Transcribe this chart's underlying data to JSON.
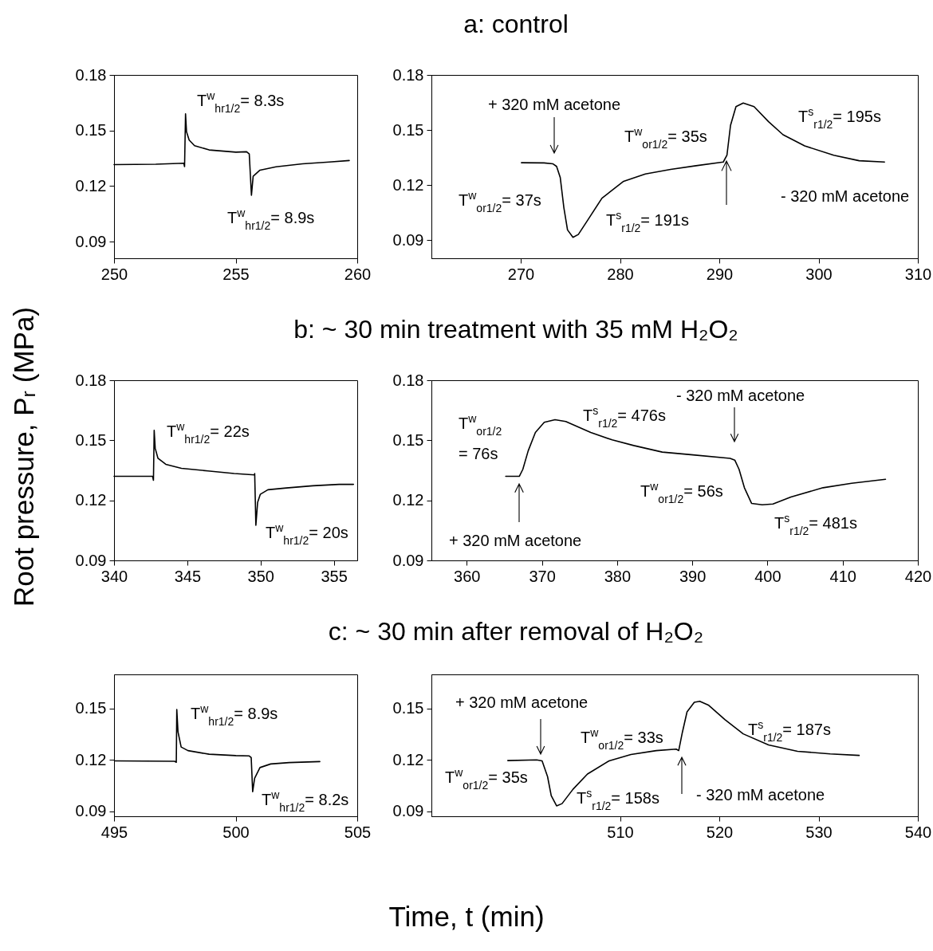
{
  "chart_data": [
    {
      "type": "line",
      "xlim": [
        250,
        260
      ],
      "xticks": [
        250,
        255,
        260
      ],
      "ylim": [
        0.081,
        0.18
      ],
      "yticks": [
        0.09,
        0.12,
        0.15,
        0.18
      ],
      "series": [
        {
          "color": "#000000",
          "x": [
            250,
            251.72,
            252.87,
            252.9,
            252.94,
            252.98,
            253.09,
            253.31,
            253.91,
            255.01,
            255.45,
            255.56,
            255.65,
            255.72,
            256.0,
            256.66,
            257.75,
            258.85,
            259.67
          ],
          "values": [
            0.1316,
            0.1318,
            0.1323,
            0.1305,
            0.159,
            0.1493,
            0.1448,
            0.1418,
            0.1395,
            0.1383,
            0.1385,
            0.1373,
            0.115,
            0.1253,
            0.1286,
            0.1304,
            0.132,
            0.133,
            0.1338
          ]
        }
      ],
      "annotations": [
        "T$^{w}$$_{hr1/2}$= 8.3s",
        "T$^{w}$$_{hr1/2}$= 8.9s"
      ]
    },
    {
      "type": "line",
      "title": "a: control",
      "xlim": [
        261,
        310
      ],
      "xticks": [
        270,
        280,
        290,
        300,
        310
      ],
      "ylim": [
        0.08,
        0.18
      ],
      "yticks": [
        0.09,
        0.12,
        0.15,
        0.18
      ],
      "series": [
        {
          "color": "#000000",
          "x": [
            270.07,
            272.34,
            273.25,
            273.61,
            273.98,
            274.34,
            274.71,
            275.26,
            275.8,
            276.72,
            278.18,
            280.36,
            282.55,
            285.1,
            287.66,
            290.4,
            290.77,
            291.13,
            291.68,
            292.41,
            293.5,
            294.96,
            296.42,
            298.6,
            301.53,
            304.09,
            306.64
          ],
          "values": [
            0.1321,
            0.132,
            0.1315,
            0.1301,
            0.124,
            0.1077,
            0.0955,
            0.0914,
            0.093,
            0.1006,
            0.1128,
            0.122,
            0.126,
            0.1285,
            0.1305,
            0.1325,
            0.1362,
            0.1525,
            0.1627,
            0.1647,
            0.1627,
            0.1545,
            0.1474,
            0.1413,
            0.1362,
            0.1332,
            0.1325
          ]
        }
      ],
      "annotations": [
        "+ 320 mM acetone",
        "T$^{w}$$_{or1/2}$= 37s",
        "T$^{s}$$_{r1/2}$= 191s",
        "T$^{w}$$_{or1/2}$= 35s",
        "- 320 mM acetone",
        "T$^{s}$$_{r1/2}$= 195s"
      ]
    },
    {
      "type": "line",
      "xlim": [
        340,
        356.6
      ],
      "xticks": [
        340,
        345,
        350,
        355
      ],
      "ylim": [
        0.09,
        0.18
      ],
      "yticks": [
        0.09,
        0.12,
        0.15,
        0.18
      ],
      "series": [
        {
          "color": "#000000",
          "x": [
            340,
            342.63,
            342.69,
            342.74,
            342.81,
            343.0,
            343.53,
            344.6,
            346.4,
            348.2,
            349.59,
            349.6,
            349.68,
            349.8,
            349.98,
            350.5,
            351.77,
            353.57,
            355.36,
            356.34
          ],
          "values": [
            0.132,
            0.132,
            0.13,
            0.155,
            0.146,
            0.141,
            0.138,
            0.136,
            0.1347,
            0.1334,
            0.1327,
            0.1334,
            0.1075,
            0.119,
            0.123,
            0.1253,
            0.1262,
            0.1273,
            0.128,
            0.128
          ]
        }
      ],
      "annotations": [
        "T$^{w}$$_{hr1/2}$= 22s",
        "T$^{w}$$_{hr1/2}$= 20s"
      ],
      "ylabel": "Root pressure, Pᵣ (MPa)"
    },
    {
      "type": "line",
      "title": "b: ~ 30 min treatment with 35 mM H₂O₂",
      "xlim": [
        355.3,
        420
      ],
      "xticks": [
        360,
        370,
        380,
        390,
        400,
        410,
        420
      ],
      "ylim": [
        0.09,
        0.18
      ],
      "yticks": [
        0.09,
        0.12,
        0.15,
        0.18
      ],
      "series": [
        {
          "color": "#000000",
          "x": [
            365.18,
            366.99,
            367.46,
            368.17,
            369.13,
            370.31,
            371.74,
            373.17,
            376.49,
            379.34,
            382.2,
            386.0,
            389.8,
            395.03,
            395.65,
            396.22,
            396.93,
            397.88,
            399.3,
            400.73,
            403.11,
            407.39,
            411.19,
            415.7
          ],
          "values": [
            0.132,
            0.132,
            0.1355,
            0.1447,
            0.1539,
            0.159,
            0.1603,
            0.1594,
            0.1539,
            0.1502,
            0.1474,
            0.1441,
            0.1428,
            0.141,
            0.1401,
            0.1355,
            0.1263,
            0.1185,
            0.1178,
            0.1182,
            0.1217,
            0.1263,
            0.1285,
            0.1305
          ]
        }
      ],
      "annotations": [
        "T$^{w}$$_{or1/2}$ = 76s",
        "+ 320 mM acetone",
        "T$^{s}$$_{r1/2}$= 476s",
        "- 320 mM acetone",
        "T$^{w}$$_{or1/2}$= 56s",
        "T$^{s}$$_{r1/2}$= 481s"
      ]
    },
    {
      "type": "line",
      "xlim": [
        495,
        505
      ],
      "xticks": [
        495,
        500,
        505
      ],
      "ylim": [
        0.087,
        0.17
      ],
      "yticks": [
        0.09,
        0.12,
        0.15
      ],
      "series": [
        {
          "color": "#000000",
          "x": [
            495.02,
            497.49,
            497.56,
            497.58,
            497.63,
            497.76,
            498.04,
            498.91,
            500.01,
            500.56,
            500.64,
            500.7,
            500.78,
            501.0,
            501.44,
            502.2,
            503.46
          ],
          "values": [
            0.1194,
            0.1192,
            0.1186,
            0.1495,
            0.1364,
            0.1275,
            0.1254,
            0.1233,
            0.1225,
            0.1223,
            0.1213,
            0.1014,
            0.1092,
            0.1155,
            0.1176,
            0.1184,
            0.119
          ]
        }
      ],
      "annotations": [
        "T$^{w}$$_{hr1/2}$= 8.9s",
        "T$^{w}$$_{hr1/2}$= 8.2s"
      ]
    },
    {
      "type": "line",
      "title": "c: ~ 30 min after removal of H₂O₂",
      "xlim": [
        491,
        540
      ],
      "xticks": [
        510,
        520,
        530,
        540
      ],
      "ylim": [
        0.087,
        0.17
      ],
      "yticks": [
        0.09,
        0.12,
        0.15
      ],
      "series": [
        {
          "color": "#000000",
          "x": [
            498.69,
            501.6,
            502.15,
            502.7,
            503.07,
            503.61,
            504.16,
            505.26,
            506.72,
            508.9,
            511.1,
            513.65,
            515.66,
            515.91,
            516.28,
            516.75,
            517.48,
            518.03,
            518.94,
            520.58,
            522.41,
            524.96,
            527.88,
            531.17,
            534.09
          ],
          "values": [
            0.1196,
            0.12,
            0.1194,
            0.1102,
            0.0991,
            0.0931,
            0.0944,
            0.1028,
            0.1117,
            0.1194,
            0.1231,
            0.1254,
            0.1263,
            0.1254,
            0.1361,
            0.1481,
            0.1537,
            0.1543,
            0.1519,
            0.1435,
            0.1352,
            0.1287,
            0.125,
            0.1235,
            0.1226
          ]
        }
      ],
      "annotations": [
        "+ 320 mM acetone",
        "T$^{w}$$_{or1/2}$= 35s",
        "T$^{s}$$_{r1/2}$= 158s",
        "T$^{w}$$_{or1/2}$= 33s",
        "- 320 mM acetone",
        "T$^{s}$$_{r1/2}$= 187s"
      ],
      "xlabel": "Time, t (min)"
    }
  ]
}
